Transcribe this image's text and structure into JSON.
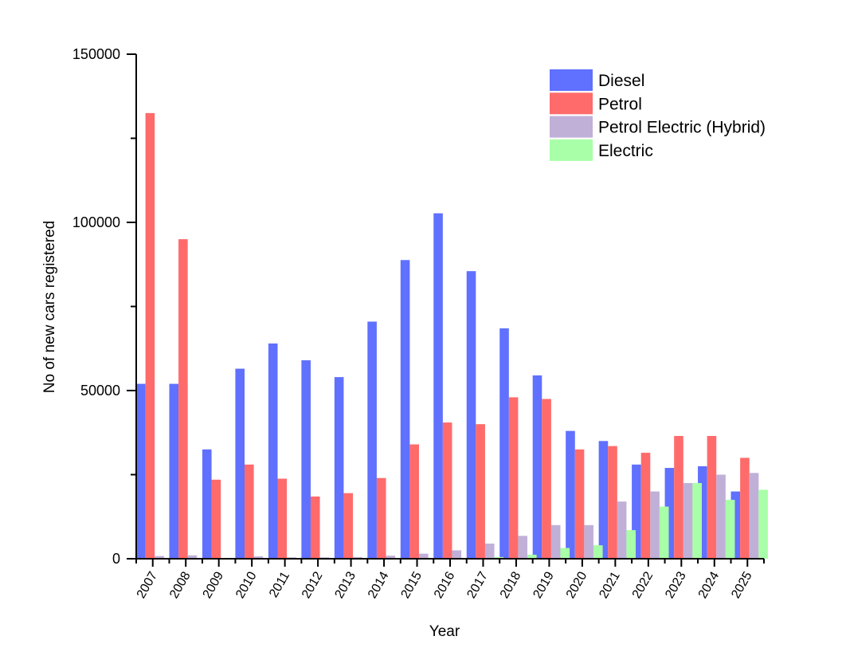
{
  "chart_data": {
    "type": "bar",
    "title": "",
    "xlabel": "Year",
    "ylabel": "No of new cars registered",
    "ylim": [
      0,
      150000
    ],
    "yticks": [
      0,
      50000,
      100000,
      150000
    ],
    "yticks_labels": [
      "0",
      "50000",
      "100000",
      "150000"
    ],
    "legend_position": "top-right",
    "categories": [
      "2007",
      "2008",
      "2009",
      "2010",
      "2011",
      "2012",
      "2013",
      "2014",
      "2015",
      "2016",
      "2017",
      "2018",
      "2019",
      "2020",
      "2021",
      "2022",
      "2023",
      "2024",
      "2025"
    ],
    "series": [
      {
        "name": "Diesel",
        "color": "#6070ff",
        "values": [
          52000,
          52000,
          32500,
          56500,
          64000,
          59000,
          54000,
          70500,
          88800,
          102700,
          85500,
          68500,
          54500,
          38000,
          35000,
          28000,
          27000,
          27500,
          20000
        ]
      },
      {
        "name": "Petrol",
        "color": "#ff6b6b",
        "values": [
          132500,
          95000,
          23500,
          28000,
          23800,
          18500,
          19500,
          24000,
          34000,
          40500,
          40000,
          48000,
          47500,
          32500,
          33500,
          31500,
          36500,
          36500,
          30000
        ]
      },
      {
        "name": "Petrol Electric (Hybrid)",
        "color": "#c0b0d8",
        "values": [
          800,
          1000,
          200,
          700,
          400,
          400,
          500,
          900,
          1500,
          2500,
          4500,
          6800,
          10000,
          10000,
          17000,
          20000,
          22500,
          25000,
          25500
        ]
      },
      {
        "name": "Electric",
        "color": "#a8ffa8",
        "values": [
          0,
          0,
          0,
          0,
          0,
          0,
          0,
          0,
          0,
          0,
          500,
          1200,
          3200,
          4000,
          8500,
          15500,
          22500,
          17500,
          20500
        ]
      }
    ]
  }
}
